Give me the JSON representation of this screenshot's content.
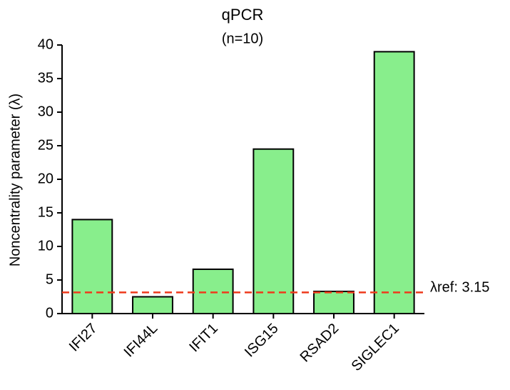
{
  "chart_data": {
    "type": "bar",
    "title": "qPCR",
    "subtitle": "(n=10)",
    "y_label": "Noncentrality parameter (λ)",
    "categories": [
      "IFI27",
      "IFI44L",
      "IFIT1",
      "ISG15",
      "RSAD2",
      "SIGLEC1"
    ],
    "values": [
      14,
      2.5,
      6.6,
      24.5,
      3.3,
      39
    ],
    "color": "#88ee8c",
    "ylim": [
      0,
      40
    ],
    "yticks": [
      0,
      5,
      10,
      15,
      20,
      25,
      30,
      35,
      40
    ],
    "reference_line": {
      "value": 3.15,
      "label": "λref: 3.15",
      "color": "#ee3a1c"
    },
    "grid": false
  }
}
